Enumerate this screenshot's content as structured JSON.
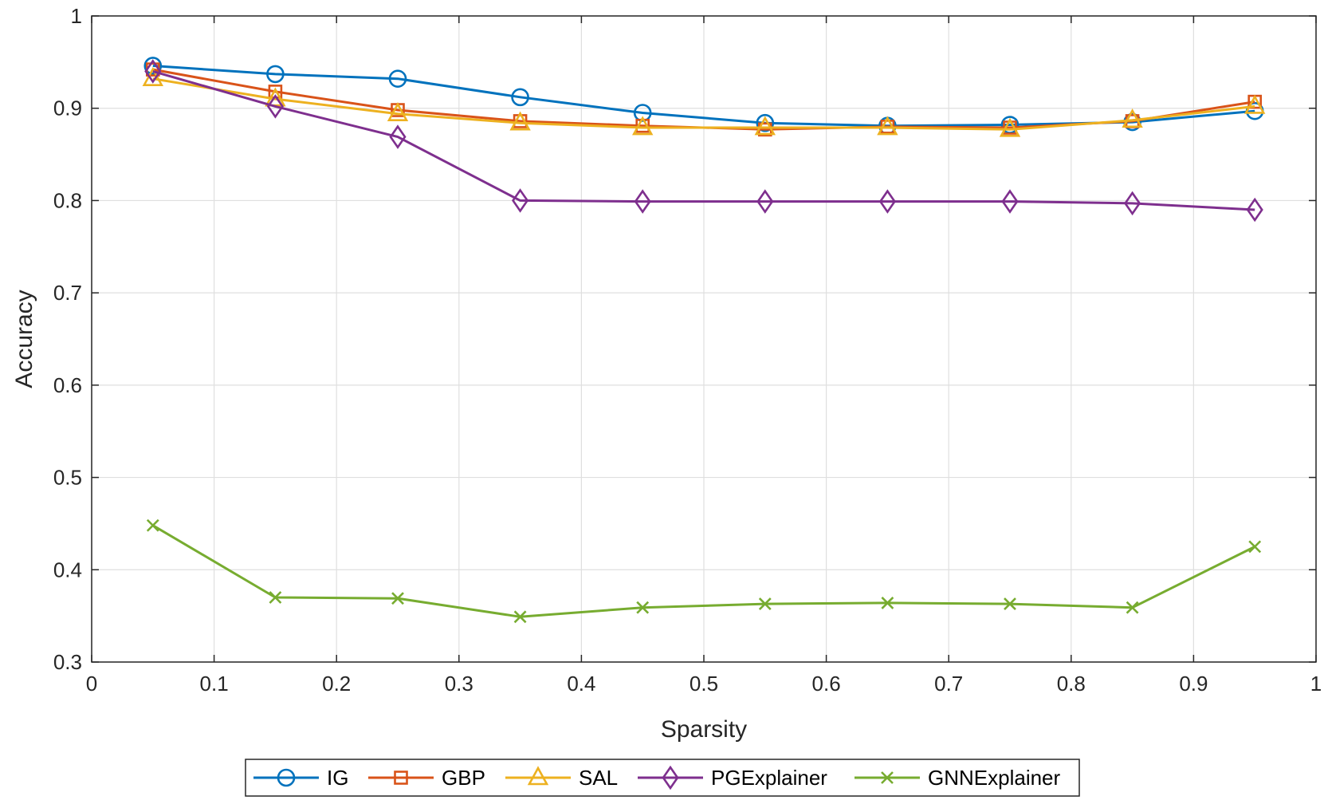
{
  "chart_data": {
    "type": "line",
    "title": "",
    "xlabel": "Sparsity",
    "ylabel": "Accuracy",
    "xlim": [
      0,
      1
    ],
    "ylim": [
      0.3,
      1
    ],
    "grid": true,
    "legend_position": "bottom-outside",
    "x_ticks": [
      0,
      0.1,
      0.2,
      0.3,
      0.4,
      0.5,
      0.6,
      0.7,
      0.8,
      0.9,
      1
    ],
    "x_tick_labels": [
      "0",
      "0.1",
      "0.2",
      "0.3",
      "0.4",
      "0.5",
      "0.6",
      "0.7",
      "0.8",
      "0.9",
      "1"
    ],
    "y_ticks": [
      0.3,
      0.4,
      0.5,
      0.6,
      0.7,
      0.8,
      0.9,
      1
    ],
    "y_tick_labels": [
      "0.3",
      "0.4",
      "0.5",
      "0.6",
      "0.7",
      "0.8",
      "0.9",
      "1"
    ],
    "x": [
      0.05,
      0.15,
      0.25,
      0.35,
      0.45,
      0.55,
      0.65,
      0.75,
      0.85,
      0.95
    ],
    "series": [
      {
        "name": "IG",
        "color": "#0072BD",
        "marker": "circle",
        "values": [
          0.946,
          0.937,
          0.932,
          0.912,
          0.895,
          0.884,
          0.881,
          0.882,
          0.885,
          0.897
        ]
      },
      {
        "name": "GBP",
        "color": "#D95319",
        "marker": "square",
        "values": [
          0.942,
          0.918,
          0.898,
          0.886,
          0.881,
          0.877,
          0.88,
          0.879,
          0.886,
          0.907
        ]
      },
      {
        "name": "SAL",
        "color": "#EDB120",
        "marker": "triangle",
        "values": [
          0.932,
          0.91,
          0.894,
          0.884,
          0.879,
          0.879,
          0.879,
          0.877,
          0.887,
          0.902
        ]
      },
      {
        "name": "PGExplainer",
        "color": "#7E2F8E",
        "marker": "diamond",
        "values": [
          0.94,
          0.902,
          0.869,
          0.8,
          0.799,
          0.799,
          0.799,
          0.799,
          0.797,
          0.79
        ]
      },
      {
        "name": "GNNExplainer",
        "color": "#77AC30",
        "marker": "x",
        "values": [
          0.448,
          0.37,
          0.369,
          0.349,
          0.359,
          0.363,
          0.364,
          0.363,
          0.359,
          0.425
        ]
      }
    ]
  }
}
